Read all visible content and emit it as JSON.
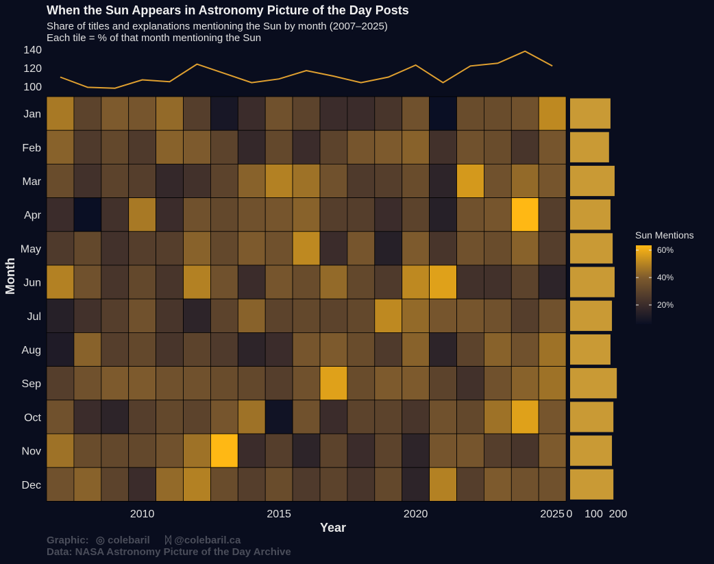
{
  "title": "When the Sun Appears in Astronomy Picture of the Day Posts",
  "subtitle": "Share of titles and explanations mentioning the Sun by month (2007–2025)",
  "subtitle2": "Each tile = % of that month mentioning the Sun",
  "caption": {
    "graphic_label": "Graphic:",
    "github_icon": "github-icon",
    "github_handle": "colebaril",
    "bluesky_icon": "butterfly-icon",
    "bluesky_handle": "@colebaril.ca",
    "data_line": "Data:  NASA Astronomy Picture of the Day Archive"
  },
  "colors": {
    "background": "#090d1e",
    "low": "#0a0f24",
    "mid": "#7d5a2d",
    "high": "#ffb814",
    "line": "#e0a030",
    "bar": "#c99a35"
  },
  "chart_data": [
    {
      "type": "heatmap",
      "xlabel": "Year",
      "ylabel": "Month",
      "x": [
        2007,
        2008,
        2009,
        2010,
        2011,
        2012,
        2013,
        2014,
        2015,
        2016,
        2017,
        2018,
        2019,
        2020,
        2021,
        2022,
        2023,
        2024,
        2025
      ],
      "x_ticks": [
        "2010",
        "2015",
        "2020",
        "2025"
      ],
      "y": [
        "Jan",
        "Feb",
        "Mar",
        "Apr",
        "May",
        "Jun",
        "Jul",
        "Aug",
        "Sep",
        "Oct",
        "Nov",
        "Dec"
      ],
      "values_percent": [
        [
          48,
          30,
          40,
          38,
          44,
          28,
          10,
          20,
          36,
          30,
          20,
          20,
          24,
          36,
          6,
          34,
          34,
          36,
          52
        ],
        [
          42,
          26,
          32,
          26,
          42,
          40,
          30,
          18,
          32,
          20,
          30,
          38,
          40,
          42,
          22,
          36,
          34,
          24,
          38
        ],
        [
          34,
          22,
          30,
          28,
          18,
          22,
          30,
          42,
          50,
          46,
          36,
          26,
          28,
          34,
          16,
          56,
          36,
          44,
          38
        ],
        [
          20,
          6,
          22,
          48,
          20,
          36,
          32,
          36,
          38,
          42,
          28,
          28,
          20,
          30,
          14,
          36,
          38,
          64,
          28
        ],
        [
          26,
          32,
          22,
          28,
          28,
          42,
          32,
          40,
          36,
          52,
          20,
          38,
          14,
          40,
          24,
          36,
          34,
          42,
          28
        ],
        [
          50,
          36,
          24,
          32,
          24,
          50,
          36,
          20,
          38,
          34,
          44,
          32,
          26,
          52,
          58,
          22,
          22,
          30,
          16
        ],
        [
          14,
          22,
          28,
          36,
          24,
          16,
          30,
          42,
          30,
          32,
          30,
          32,
          52,
          44,
          38,
          38,
          36,
          28,
          36
        ],
        [
          12,
          42,
          28,
          32,
          24,
          30,
          26,
          16,
          20,
          38,
          40,
          34,
          26,
          42,
          16,
          30,
          42,
          36,
          46
        ],
        [
          28,
          36,
          40,
          40,
          36,
          36,
          34,
          32,
          28,
          36,
          58,
          34,
          40,
          40,
          30,
          22,
          36,
          42,
          46
        ],
        [
          36,
          20,
          16,
          28,
          32,
          30,
          38,
          46,
          8,
          36,
          20,
          30,
          30,
          24,
          36,
          32,
          46,
          58,
          38
        ],
        [
          46,
          34,
          32,
          32,
          36,
          46,
          64,
          20,
          28,
          16,
          30,
          20,
          30,
          16,
          38,
          38,
          28,
          24,
          40
        ],
        [
          36,
          42,
          30,
          20,
          44,
          50,
          34,
          28,
          34,
          26,
          30,
          24,
          32,
          16,
          50,
          28,
          40,
          36,
          36
        ]
      ],
      "legend": {
        "title": "Sun Mentions",
        "ticks": [
          "20%",
          "40%",
          "60%"
        ],
        "range_percent": [
          6,
          64
        ]
      }
    },
    {
      "type": "line",
      "x": [
        2007,
        2008,
        2009,
        2010,
        2011,
        2012,
        2013,
        2014,
        2015,
        2016,
        2017,
        2018,
        2019,
        2020,
        2021,
        2022,
        2023,
        2024,
        2025
      ],
      "values": [
        110,
        99,
        98,
        107,
        105,
        124,
        114,
        104,
        108,
        117,
        111,
        104,
        110,
        123,
        104,
        122,
        125,
        138,
        122
      ],
      "y_ticks": [
        "100",
        "120",
        "140"
      ],
      "ylim": [
        100,
        140
      ]
    },
    {
      "type": "bar",
      "orientation": "horizontal",
      "categories": [
        "Jan",
        "Feb",
        "Mar",
        "Apr",
        "May",
        "Jun",
        "Jul",
        "Aug",
        "Sep",
        "Oct",
        "Nov",
        "Dec"
      ],
      "values": [
        166,
        160,
        183,
        166,
        175,
        183,
        172,
        166,
        192,
        178,
        172,
        178
      ],
      "x_ticks": [
        "0",
        "100",
        "200"
      ],
      "xlim": [
        0,
        200
      ]
    }
  ]
}
